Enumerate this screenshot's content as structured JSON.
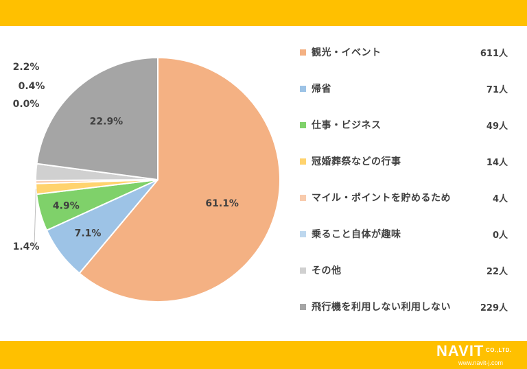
{
  "chart_data": {
    "type": "pie",
    "slices": [
      {
        "label": "観光・イベント",
        "value": 611,
        "count_label": "611人",
        "percent_label": "61.1%",
        "color": "#f4b183"
      },
      {
        "label": "帰省",
        "value": 71,
        "count_label": "71人",
        "percent_label": "7.1%",
        "color": "#9dc3e6"
      },
      {
        "label": "仕事・ビジネス",
        "value": 49,
        "count_label": "49人",
        "percent_label": "4.9%",
        "color": "#7fd16a"
      },
      {
        "label": "冠婚葬祭などの行事",
        "value": 14,
        "count_label": "14人",
        "percent_label": "1.4%",
        "color": "#ffd36e"
      },
      {
        "label": "マイル・ポイントを貯めるため",
        "value": 4,
        "count_label": "4人",
        "percent_label": "0.4%",
        "color": "#f8cbad"
      },
      {
        "label": "乗ること自体が趣味",
        "value": 0,
        "count_label": "0人",
        "percent_label": "0.0%",
        "color": "#bdd7ee"
      },
      {
        "label": "その他",
        "value": 22,
        "count_label": "22人",
        "percent_label": "2.2%",
        "color": "#d0d0d0"
      },
      {
        "label": "飛行機を利用しない利用しない",
        "value": 229,
        "count_label": "229人",
        "percent_label": "22.9%",
        "color": "#a5a5a5"
      }
    ],
    "legend_position": "right"
  },
  "colors": {
    "band": "#ffc000",
    "text": "#404040"
  },
  "logo": {
    "name": "NAVIT",
    "suffix": "CO.,LTD.",
    "url": "www.navit-j.com"
  }
}
